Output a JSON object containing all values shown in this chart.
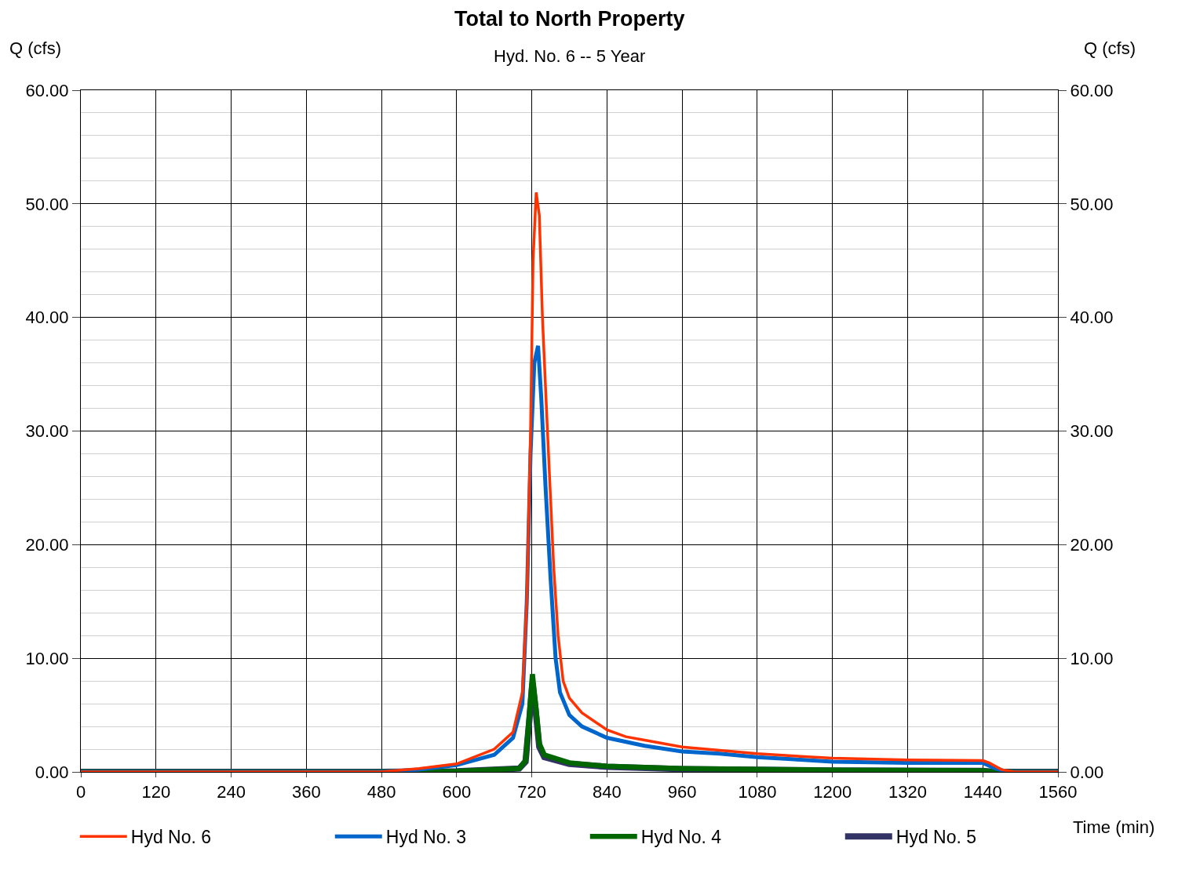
{
  "chart_data": {
    "type": "line",
    "title": "Total to North Property",
    "subtitle": "Hyd. No. 6 -- 5 Year",
    "xlabel": "Time (min)",
    "ylabel": "Q (cfs)",
    "y2label": "Q (cfs)",
    "xlim": [
      0,
      1560
    ],
    "xticks": [
      0,
      120,
      240,
      360,
      480,
      600,
      720,
      840,
      960,
      1080,
      1200,
      1320,
      1440,
      1560
    ],
    "ylim": [
      0,
      60
    ],
    "yticks": [
      {
        "value": 0,
        "label": "0.00"
      },
      {
        "value": 2,
        "label": null
      },
      {
        "value": 4,
        "label": null
      },
      {
        "value": 6,
        "label": null
      },
      {
        "value": 8,
        "label": null
      },
      {
        "value": 10,
        "label": "10.00"
      },
      {
        "value": 12,
        "label": null
      },
      {
        "value": 14,
        "label": null
      },
      {
        "value": 16,
        "label": null
      },
      {
        "value": 18,
        "label": null
      },
      {
        "value": 20,
        "label": "20.00"
      },
      {
        "value": 22,
        "label": null
      },
      {
        "value": 24,
        "label": null
      },
      {
        "value": 26,
        "label": null
      },
      {
        "value": 28,
        "label": null
      },
      {
        "value": 30,
        "label": "30.00"
      },
      {
        "value": 32,
        "label": null
      },
      {
        "value": 34,
        "label": null
      },
      {
        "value": 36,
        "label": null
      },
      {
        "value": 38,
        "label": null
      },
      {
        "value": 40,
        "label": "40.00"
      },
      {
        "value": 42,
        "label": null
      },
      {
        "value": 44,
        "label": null
      },
      {
        "value": 46,
        "label": null
      },
      {
        "value": 48,
        "label": null
      },
      {
        "value": 50,
        "label": "50.00"
      },
      {
        "value": 52,
        "label": null
      },
      {
        "value": 54,
        "label": null
      },
      {
        "value": 56,
        "label": null
      },
      {
        "value": 58,
        "label": null
      },
      {
        "value": 60,
        "label": "60.00"
      }
    ],
    "y2lim": [
      0,
      60
    ],
    "y2ticks": [
      {
        "value": 0,
        "label": "0.00"
      },
      {
        "value": 10,
        "label": "10.00"
      },
      {
        "value": 20,
        "label": "20.00"
      },
      {
        "value": 30,
        "label": "30.00"
      },
      {
        "value": 40,
        "label": "40.00"
      },
      {
        "value": 50,
        "label": "50.00"
      },
      {
        "value": 60,
        "label": "60.00"
      }
    ],
    "grid": true,
    "legend": "bottom",
    "marker": "none",
    "line_style": "solid",
    "series": [
      {
        "name": "Hyd No. 6",
        "color": "#ff3300",
        "x": [
          0,
          480,
          540,
          600,
          660,
          690,
          705,
          712,
          718,
          722,
          727,
          732,
          737,
          745,
          755,
          762,
          770,
          780,
          800,
          840,
          870,
          900,
          960,
          1020,
          1080,
          1140,
          1200,
          1320,
          1440,
          1450,
          1470,
          1490,
          1560
        ],
        "values": [
          0,
          0,
          0.3,
          0.7,
          2,
          3.5,
          7,
          15,
          30,
          45,
          51,
          49,
          40,
          30,
          18,
          12,
          8,
          6.5,
          5.2,
          3.7,
          3.1,
          2.8,
          2.2,
          1.9,
          1.6,
          1.4,
          1.2,
          1.05,
          1,
          0.8,
          0.2,
          0,
          0
        ]
      },
      {
        "name": "Hyd No. 3",
        "color": "#0066cc",
        "x": [
          0,
          480,
          540,
          600,
          660,
          690,
          705,
          712,
          718,
          724,
          730,
          735,
          742,
          750,
          758,
          765,
          780,
          800,
          840,
          900,
          960,
          1020,
          1080,
          1140,
          1200,
          1320,
          1440,
          1460,
          1480,
          1560
        ],
        "values": [
          0,
          0,
          0.2,
          0.6,
          1.5,
          3,
          6,
          15,
          28,
          36,
          37.5,
          33,
          25,
          17,
          10,
          7,
          5,
          4,
          3,
          2.3,
          1.8,
          1.6,
          1.3,
          1.1,
          0.9,
          0.8,
          0.8,
          0.3,
          0,
          0
        ]
      },
      {
        "name": "Hyd No. 4",
        "color": "#006600",
        "x": [
          0,
          480,
          600,
          700,
          710,
          716,
          721,
          726,
          732,
          740,
          780,
          840,
          960,
          1200,
          1440,
          1460,
          1560
        ],
        "values": [
          0,
          0,
          0.05,
          0.3,
          1,
          5,
          8.6,
          6,
          2.5,
          1.5,
          0.8,
          0.5,
          0.3,
          0.15,
          0.1,
          0,
          0
        ]
      },
      {
        "name": "Hyd No. 5",
        "color": "#333366",
        "x": [
          0,
          480,
          600,
          700,
          710,
          716,
          721,
          726,
          732,
          740,
          780,
          840,
          960,
          1200,
          1440,
          1460,
          1560
        ],
        "values": [
          0,
          0,
          0.05,
          0.3,
          0.9,
          4.5,
          7.8,
          5.5,
          2.2,
          1.3,
          0.7,
          0.45,
          0.25,
          0.12,
          0.08,
          0,
          0
        ]
      }
    ]
  }
}
